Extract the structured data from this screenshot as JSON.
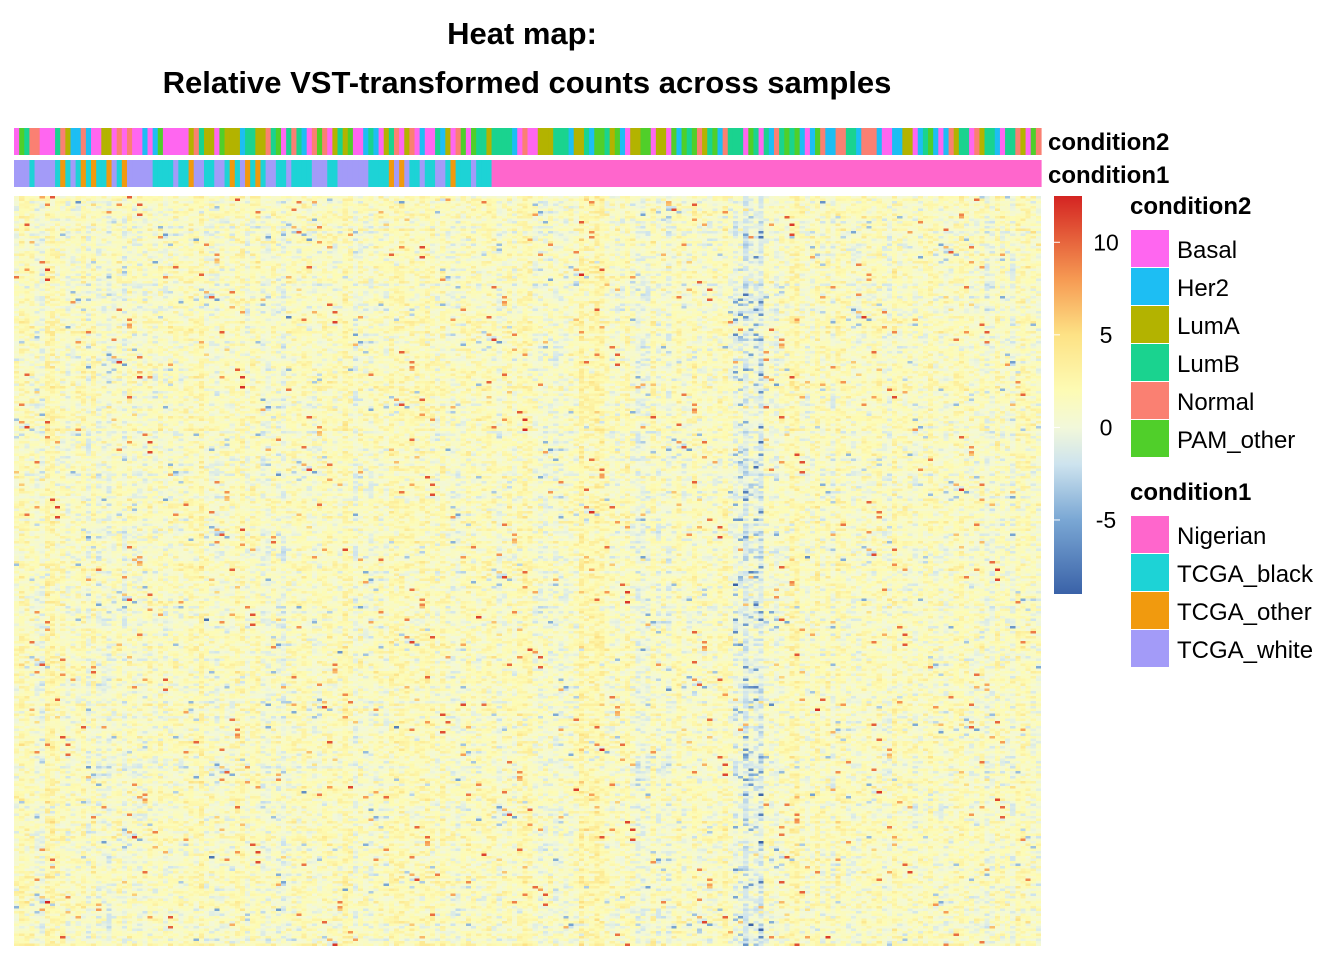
{
  "chart_data": {
    "type": "heatmap",
    "title_lines": [
      "Heat map:",
      "Relative VST-transformed counts across samples"
    ],
    "n_samples": 200,
    "n_genes": 300,
    "annotation_tracks": [
      {
        "name": "condition2",
        "legend_title": "condition2",
        "categories": [
          {
            "label": "Basal",
            "color": "#FF66F0"
          },
          {
            "label": "Her2",
            "color": "#1DBEF3"
          },
          {
            "label": "LumA",
            "color": "#B3B300"
          },
          {
            "label": "LumB",
            "color": "#1AD38F"
          },
          {
            "label": "Normal",
            "color": "#FA8072"
          },
          {
            "label": "PAM_other",
            "color": "#50CF2A"
          }
        ]
      },
      {
        "name": "condition1",
        "legend_title": "condition1",
        "categories": [
          {
            "label": "Nigerian",
            "color": "#FF66CC"
          },
          {
            "label": "TCGA_black",
            "color": "#1DD3D6"
          },
          {
            "label": "TCGA_other",
            "color": "#F19A0E"
          },
          {
            "label": "TCGA_white",
            "color": "#A39BF8"
          }
        ]
      }
    ],
    "color_scale": {
      "min": -9,
      "max": 12.5,
      "stops": [
        {
          "value": -9,
          "color": "#3A62A8"
        },
        {
          "value": -5,
          "color": "#7AA7D4"
        },
        {
          "value": -2,
          "color": "#CDE3EE"
        },
        {
          "value": 0,
          "color": "#F2F8DA"
        },
        {
          "value": 2,
          "color": "#FDFBB4"
        },
        {
          "value": 5,
          "color": "#FDE285"
        },
        {
          "value": 8,
          "color": "#F69A53"
        },
        {
          "value": 12.5,
          "color": "#D42422"
        }
      ],
      "ticks": [
        -5,
        0,
        5,
        10
      ],
      "tick_labels": [
        "-5",
        "0",
        "5",
        "10"
      ]
    }
  }
}
